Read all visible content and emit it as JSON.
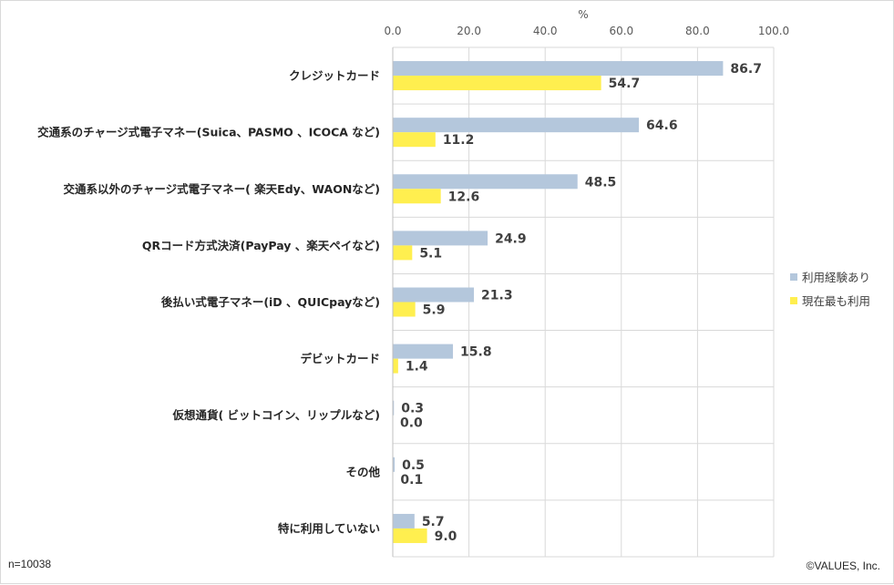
{
  "chart_data": {
    "type": "bar",
    "orientation": "horizontal",
    "unit_label": "%",
    "xlim": [
      0,
      100
    ],
    "x_ticks": [
      "0.0",
      "20.0",
      "40.0",
      "60.0",
      "80.0",
      "100.0"
    ],
    "categories": [
      "クレジットカード",
      "交通系のチャージ式電子マネー(Suica、PASMO 、ICOCA など)",
      "交通系以外のチャージ式電子マネー( 楽天Edy、WAONなど)",
      "QRコード方式決済(PayPay 、楽天ペイなど)",
      "後払い式電子マネー(iD 、QUICpayなど)",
      "デビットカード",
      "仮想通貨( ビットコイン、リップルなど)",
      "その他",
      "特に利用していない"
    ],
    "series": [
      {
        "name": "利用経験あり",
        "color": "#b4c7dc",
        "values": [
          86.7,
          64.6,
          48.5,
          24.9,
          21.3,
          15.8,
          0.3,
          0.5,
          5.7
        ],
        "labels": [
          "86.7",
          "64.6",
          "48.5",
          "24.9",
          "21.3",
          "15.8",
          "0.3",
          "0.5",
          "5.7"
        ]
      },
      {
        "name": "現在最も利用",
        "color": "#ffef4f",
        "values": [
          54.7,
          11.2,
          12.6,
          5.1,
          5.9,
          1.4,
          0.0,
          0.1,
          9.0
        ],
        "labels": [
          "54.7",
          "11.2",
          "12.6",
          "5.1",
          "5.9",
          "1.4",
          "0.0",
          "0.1",
          "9.0"
        ]
      }
    ],
    "grid": true,
    "legend_position": "right"
  },
  "footer": {
    "sample_size": "n=10038",
    "copyright": "©VALUES, Inc."
  }
}
